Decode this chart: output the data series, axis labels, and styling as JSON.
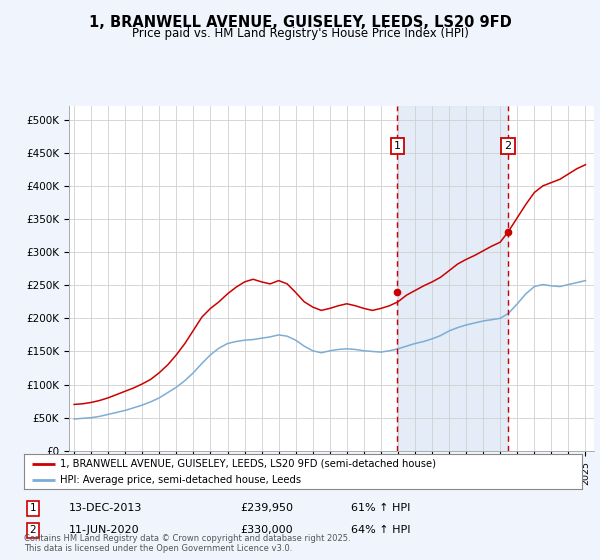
{
  "title": "1, BRANWELL AVENUE, GUISELEY, LEEDS, LS20 9FD",
  "subtitle": "Price paid vs. HM Land Registry's House Price Index (HPI)",
  "ylim": [
    0,
    520000
  ],
  "yticks": [
    0,
    50000,
    100000,
    150000,
    200000,
    250000,
    300000,
    350000,
    400000,
    450000,
    500000
  ],
  "ytick_labels": [
    "£0",
    "£50K",
    "£100K",
    "£150K",
    "£200K",
    "£250K",
    "£300K",
    "£350K",
    "£400K",
    "£450K",
    "£500K"
  ],
  "sale1_price": 239950,
  "sale1_label": "13-DEC-2013",
  "sale1_hpi": "61% ↑ HPI",
  "sale1_x": 2013.96,
  "sale2_price": 330000,
  "sale2_label": "11-JUN-2020",
  "sale2_hpi": "64% ↑ HPI",
  "sale2_x": 2020.45,
  "line1_color": "#cc0000",
  "line2_color": "#7dadd4",
  "legend_line1": "1, BRANWELL AVENUE, GUISELEY, LEEDS, LS20 9FD (semi-detached house)",
  "legend_line2": "HPI: Average price, semi-detached house, Leeds",
  "footnote": "Contains HM Land Registry data © Crown copyright and database right 2025.\nThis data is licensed under the Open Government Licence v3.0.",
  "bg_color": "#f0f4fc",
  "plot_bg": "#ffffff",
  "vline_color": "#cc0000",
  "shade_color": "#dde8f5",
  "title_fontsize": 10.5,
  "subtitle_fontsize": 8.5,
  "hpi_years": [
    1995.0,
    1995.5,
    1996.0,
    1996.5,
    1997.0,
    1997.5,
    1998.0,
    1998.5,
    1999.0,
    1999.5,
    2000.0,
    2000.5,
    2001.0,
    2001.5,
    2002.0,
    2002.5,
    2003.0,
    2003.5,
    2004.0,
    2004.5,
    2005.0,
    2005.5,
    2006.0,
    2006.5,
    2007.0,
    2007.5,
    2008.0,
    2008.5,
    2009.0,
    2009.5,
    2010.0,
    2010.5,
    2011.0,
    2011.5,
    2012.0,
    2012.5,
    2013.0,
    2013.5,
    2014.0,
    2014.5,
    2015.0,
    2015.5,
    2016.0,
    2016.5,
    2017.0,
    2017.5,
    2018.0,
    2018.5,
    2019.0,
    2019.5,
    2020.0,
    2020.5,
    2021.0,
    2021.5,
    2022.0,
    2022.5,
    2023.0,
    2023.5,
    2024.0,
    2024.5,
    2025.0
  ],
  "hpi_values": [
    48000,
    49000,
    50000,
    52000,
    55000,
    58000,
    61000,
    65000,
    69000,
    74000,
    80000,
    88000,
    96000,
    106000,
    118000,
    132000,
    145000,
    155000,
    162000,
    165000,
    167000,
    168000,
    170000,
    172000,
    175000,
    173000,
    167000,
    158000,
    151000,
    148000,
    151000,
    153000,
    154000,
    153000,
    151000,
    150000,
    149000,
    151000,
    154000,
    158000,
    162000,
    165000,
    169000,
    174000,
    181000,
    186000,
    190000,
    193000,
    196000,
    198000,
    200000,
    208000,
    222000,
    237000,
    248000,
    251000,
    249000,
    248000,
    251000,
    254000,
    257000
  ],
  "prop_years": [
    1995.0,
    1995.5,
    1996.0,
    1996.5,
    1997.0,
    1997.5,
    1998.0,
    1998.5,
    1999.0,
    1999.5,
    2000.0,
    2000.5,
    2001.0,
    2001.5,
    2002.0,
    2002.5,
    2003.0,
    2003.5,
    2004.0,
    2004.5,
    2005.0,
    2005.5,
    2006.0,
    2006.5,
    2007.0,
    2007.5,
    2008.0,
    2008.5,
    2009.0,
    2009.5,
    2010.0,
    2010.5,
    2011.0,
    2011.5,
    2012.0,
    2012.5,
    2013.0,
    2013.5,
    2014.0,
    2014.5,
    2015.0,
    2015.5,
    2016.0,
    2016.5,
    2017.0,
    2017.5,
    2018.0,
    2018.5,
    2019.0,
    2019.5,
    2020.0,
    2020.5,
    2021.0,
    2021.5,
    2022.0,
    2022.5,
    2023.0,
    2023.5,
    2024.0,
    2024.5,
    2025.0
  ],
  "prop_values": [
    70000,
    71000,
    73000,
    76000,
    80000,
    85000,
    90000,
    95000,
    101000,
    108000,
    118000,
    130000,
    145000,
    162000,
    182000,
    202000,
    215000,
    225000,
    237000,
    247000,
    255000,
    259000,
    255000,
    252000,
    257000,
    252000,
    239000,
    225000,
    217000,
    212000,
    215000,
    219000,
    222000,
    219000,
    215000,
    212000,
    215000,
    219000,
    225000,
    235000,
    242000,
    249000,
    255000,
    262000,
    272000,
    282000,
    289000,
    295000,
    302000,
    309000,
    315000,
    332000,
    352000,
    372000,
    390000,
    400000,
    405000,
    410000,
    418000,
    426000,
    432000
  ]
}
